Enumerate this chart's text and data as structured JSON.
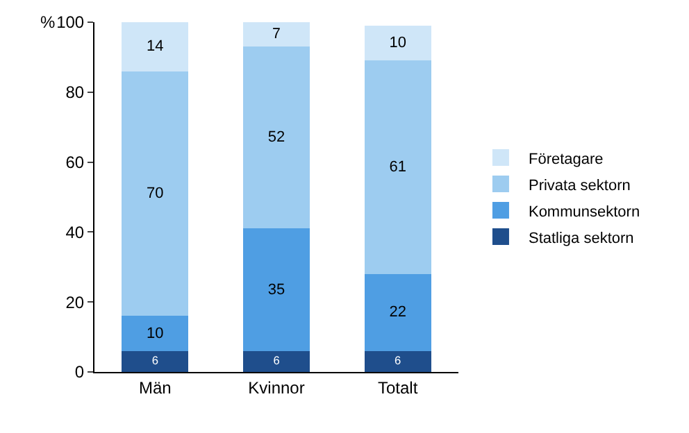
{
  "chart_data": {
    "type": "bar",
    "stacked": true,
    "ylabel": "%",
    "categories": [
      "Män",
      "Kvinnor",
      "Totalt"
    ],
    "series": [
      {
        "name": "Statliga sektorn",
        "color": "#1f4e8c",
        "values": [
          6,
          6,
          6
        ]
      },
      {
        "name": "Kommunsektorn",
        "color": "#4f9ee3",
        "values": [
          10,
          35,
          22
        ]
      },
      {
        "name": "Privata sektorn",
        "color": "#9dccf0",
        "values": [
          70,
          52,
          61
        ]
      },
      {
        "name": "Företagare",
        "color": "#cfe6f8",
        "values": [
          14,
          7,
          10
        ]
      }
    ],
    "ylim": [
      0,
      100
    ],
    "yticks": [
      0,
      20,
      40,
      60,
      80,
      100
    ],
    "grid": false,
    "legend": "right",
    "data_labels": true
  }
}
